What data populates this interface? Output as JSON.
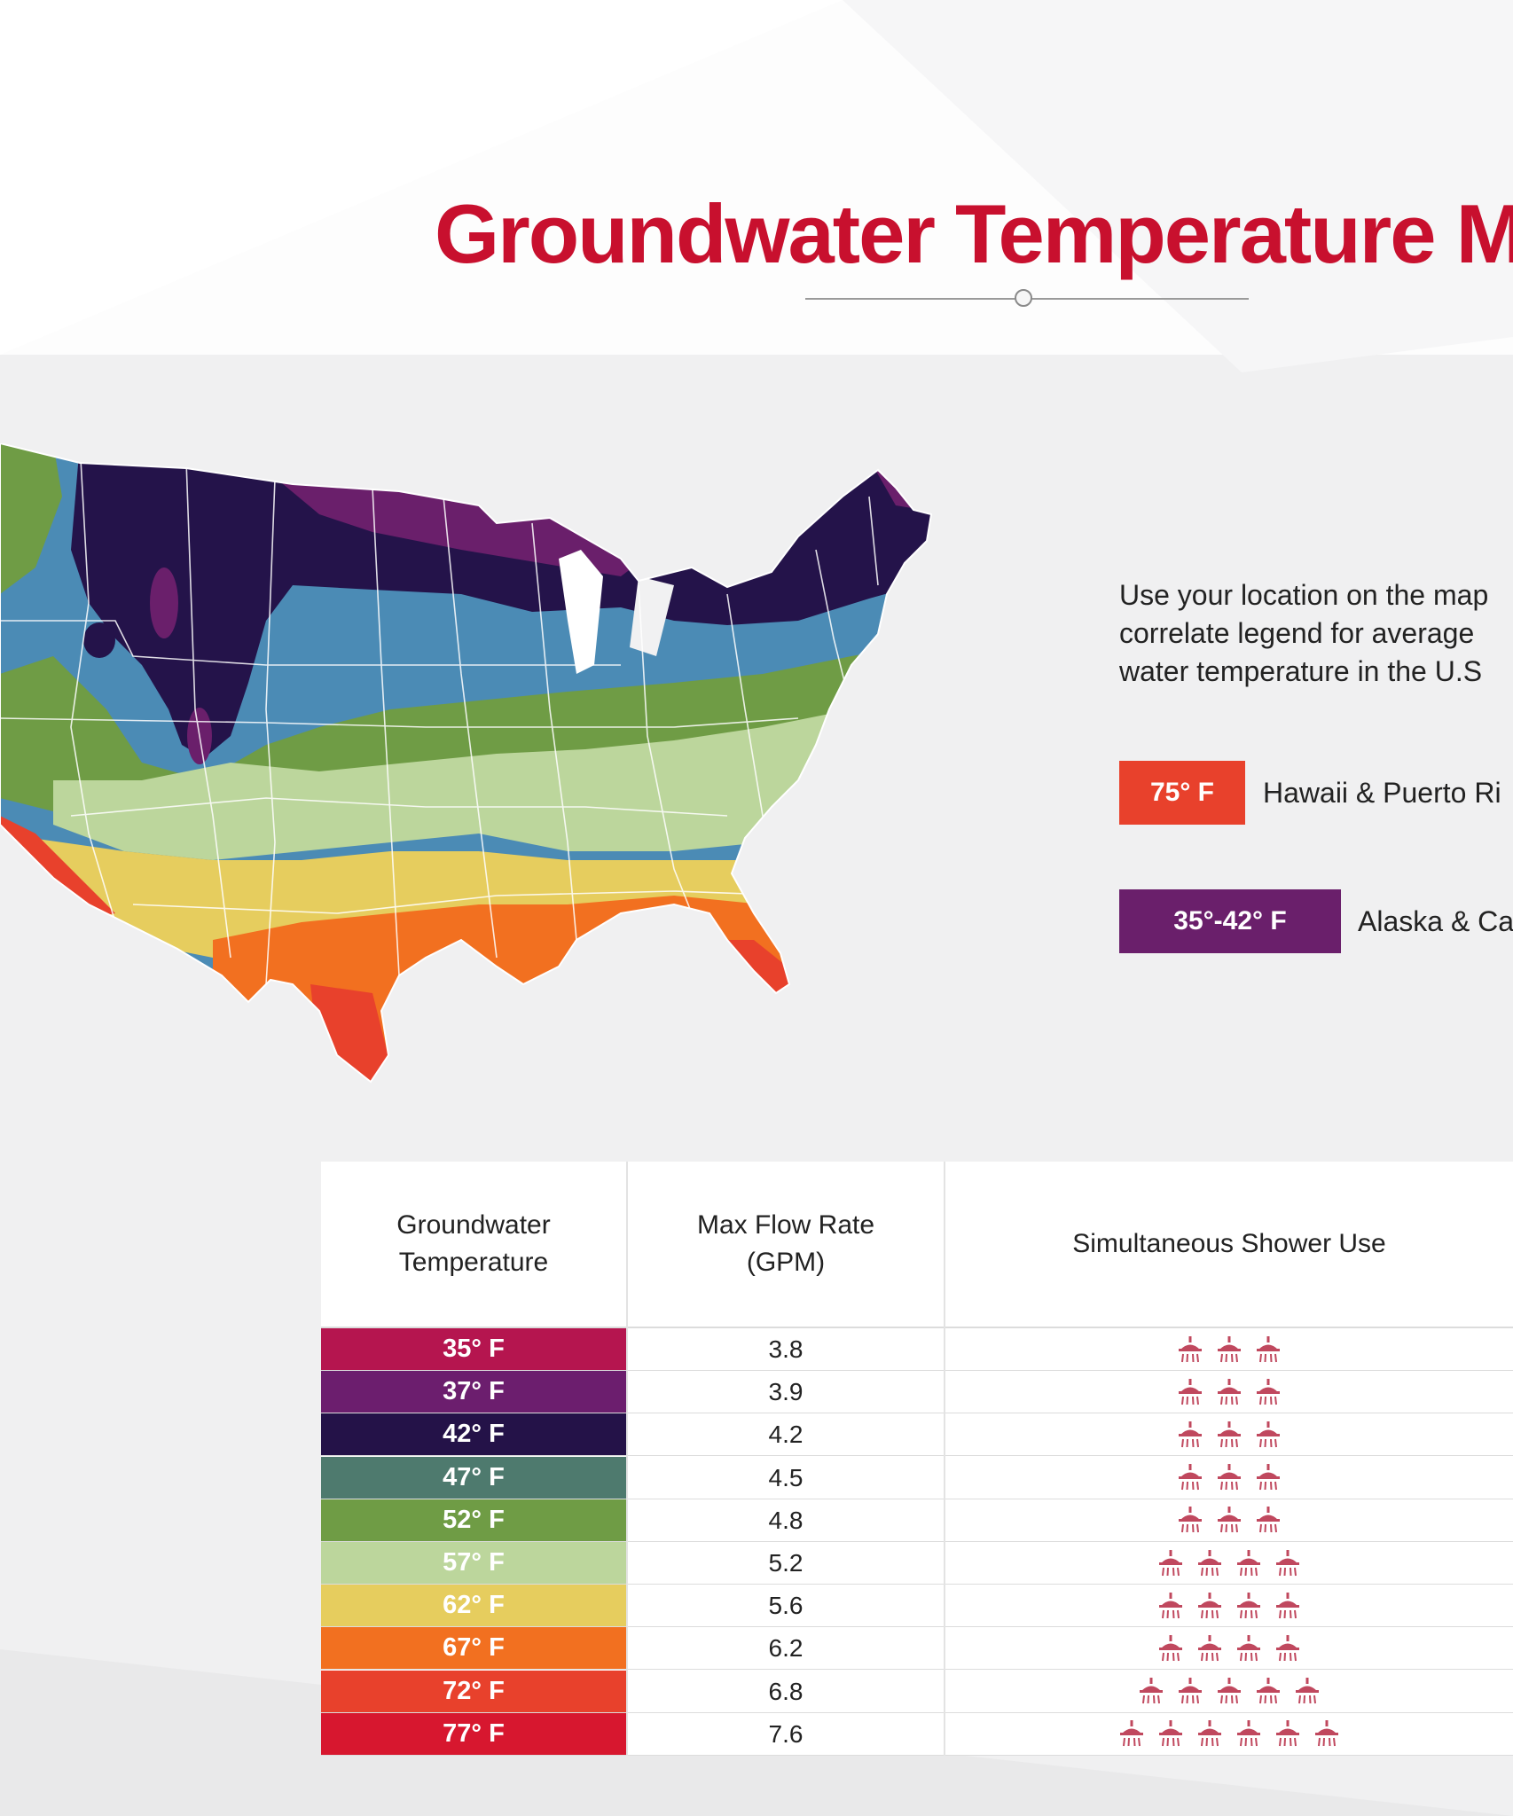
{
  "title": "Groundwater Temperature M",
  "instructions": "Use your location on the map\ncorrelate legend for average \nwater temperature  in the U.S",
  "legend": [
    {
      "swatch": "75° F",
      "label": "Hawaii & Puerto Ri",
      "color": "#e8412c"
    },
    {
      "swatch": "35°-42° F",
      "label": "Alaska & Ca",
      "color": "#6a1f6b"
    }
  ],
  "table": {
    "headers": [
      "Groundwater\nTemperature",
      "Max Flow Rate\n(GPM)",
      "Simultaneous Shower Use"
    ],
    "rows": [
      {
        "temp": "35° F",
        "flow": "3.8",
        "showers": 3,
        "color": "#b5154f"
      },
      {
        "temp": "37° F",
        "flow": "3.9",
        "showers": 3,
        "color": "#6c1e6e"
      },
      {
        "temp": "42° F",
        "flow": "4.2",
        "showers": 3,
        "color": "#241248"
      },
      {
        "temp": "47° F",
        "flow": "4.5",
        "showers": 3,
        "color": "#4e7a6e"
      },
      {
        "temp": "52° F",
        "flow": "4.8",
        "showers": 3,
        "color": "#6f9c45"
      },
      {
        "temp": "57° F",
        "flow": "5.2",
        "showers": 4,
        "color": "#bcd69c"
      },
      {
        "temp": "62° F",
        "flow": "5.6",
        "showers": 4,
        "color": "#e6cd5e"
      },
      {
        "temp": "67° F",
        "flow": "6.2",
        "showers": 4,
        "color": "#f27020"
      },
      {
        "temp": "72° F",
        "flow": "6.8",
        "showers": 5,
        "color": "#e8412c"
      },
      {
        "temp": "77° F",
        "flow": "7.6",
        "showers": 6,
        "color": "#d7172f"
      }
    ]
  },
  "colors": {
    "title": "#c8102e",
    "shower_icon": "#c0485e"
  },
  "icons": {
    "shower": "shower-icon",
    "divider": "divider-knob-icon"
  }
}
